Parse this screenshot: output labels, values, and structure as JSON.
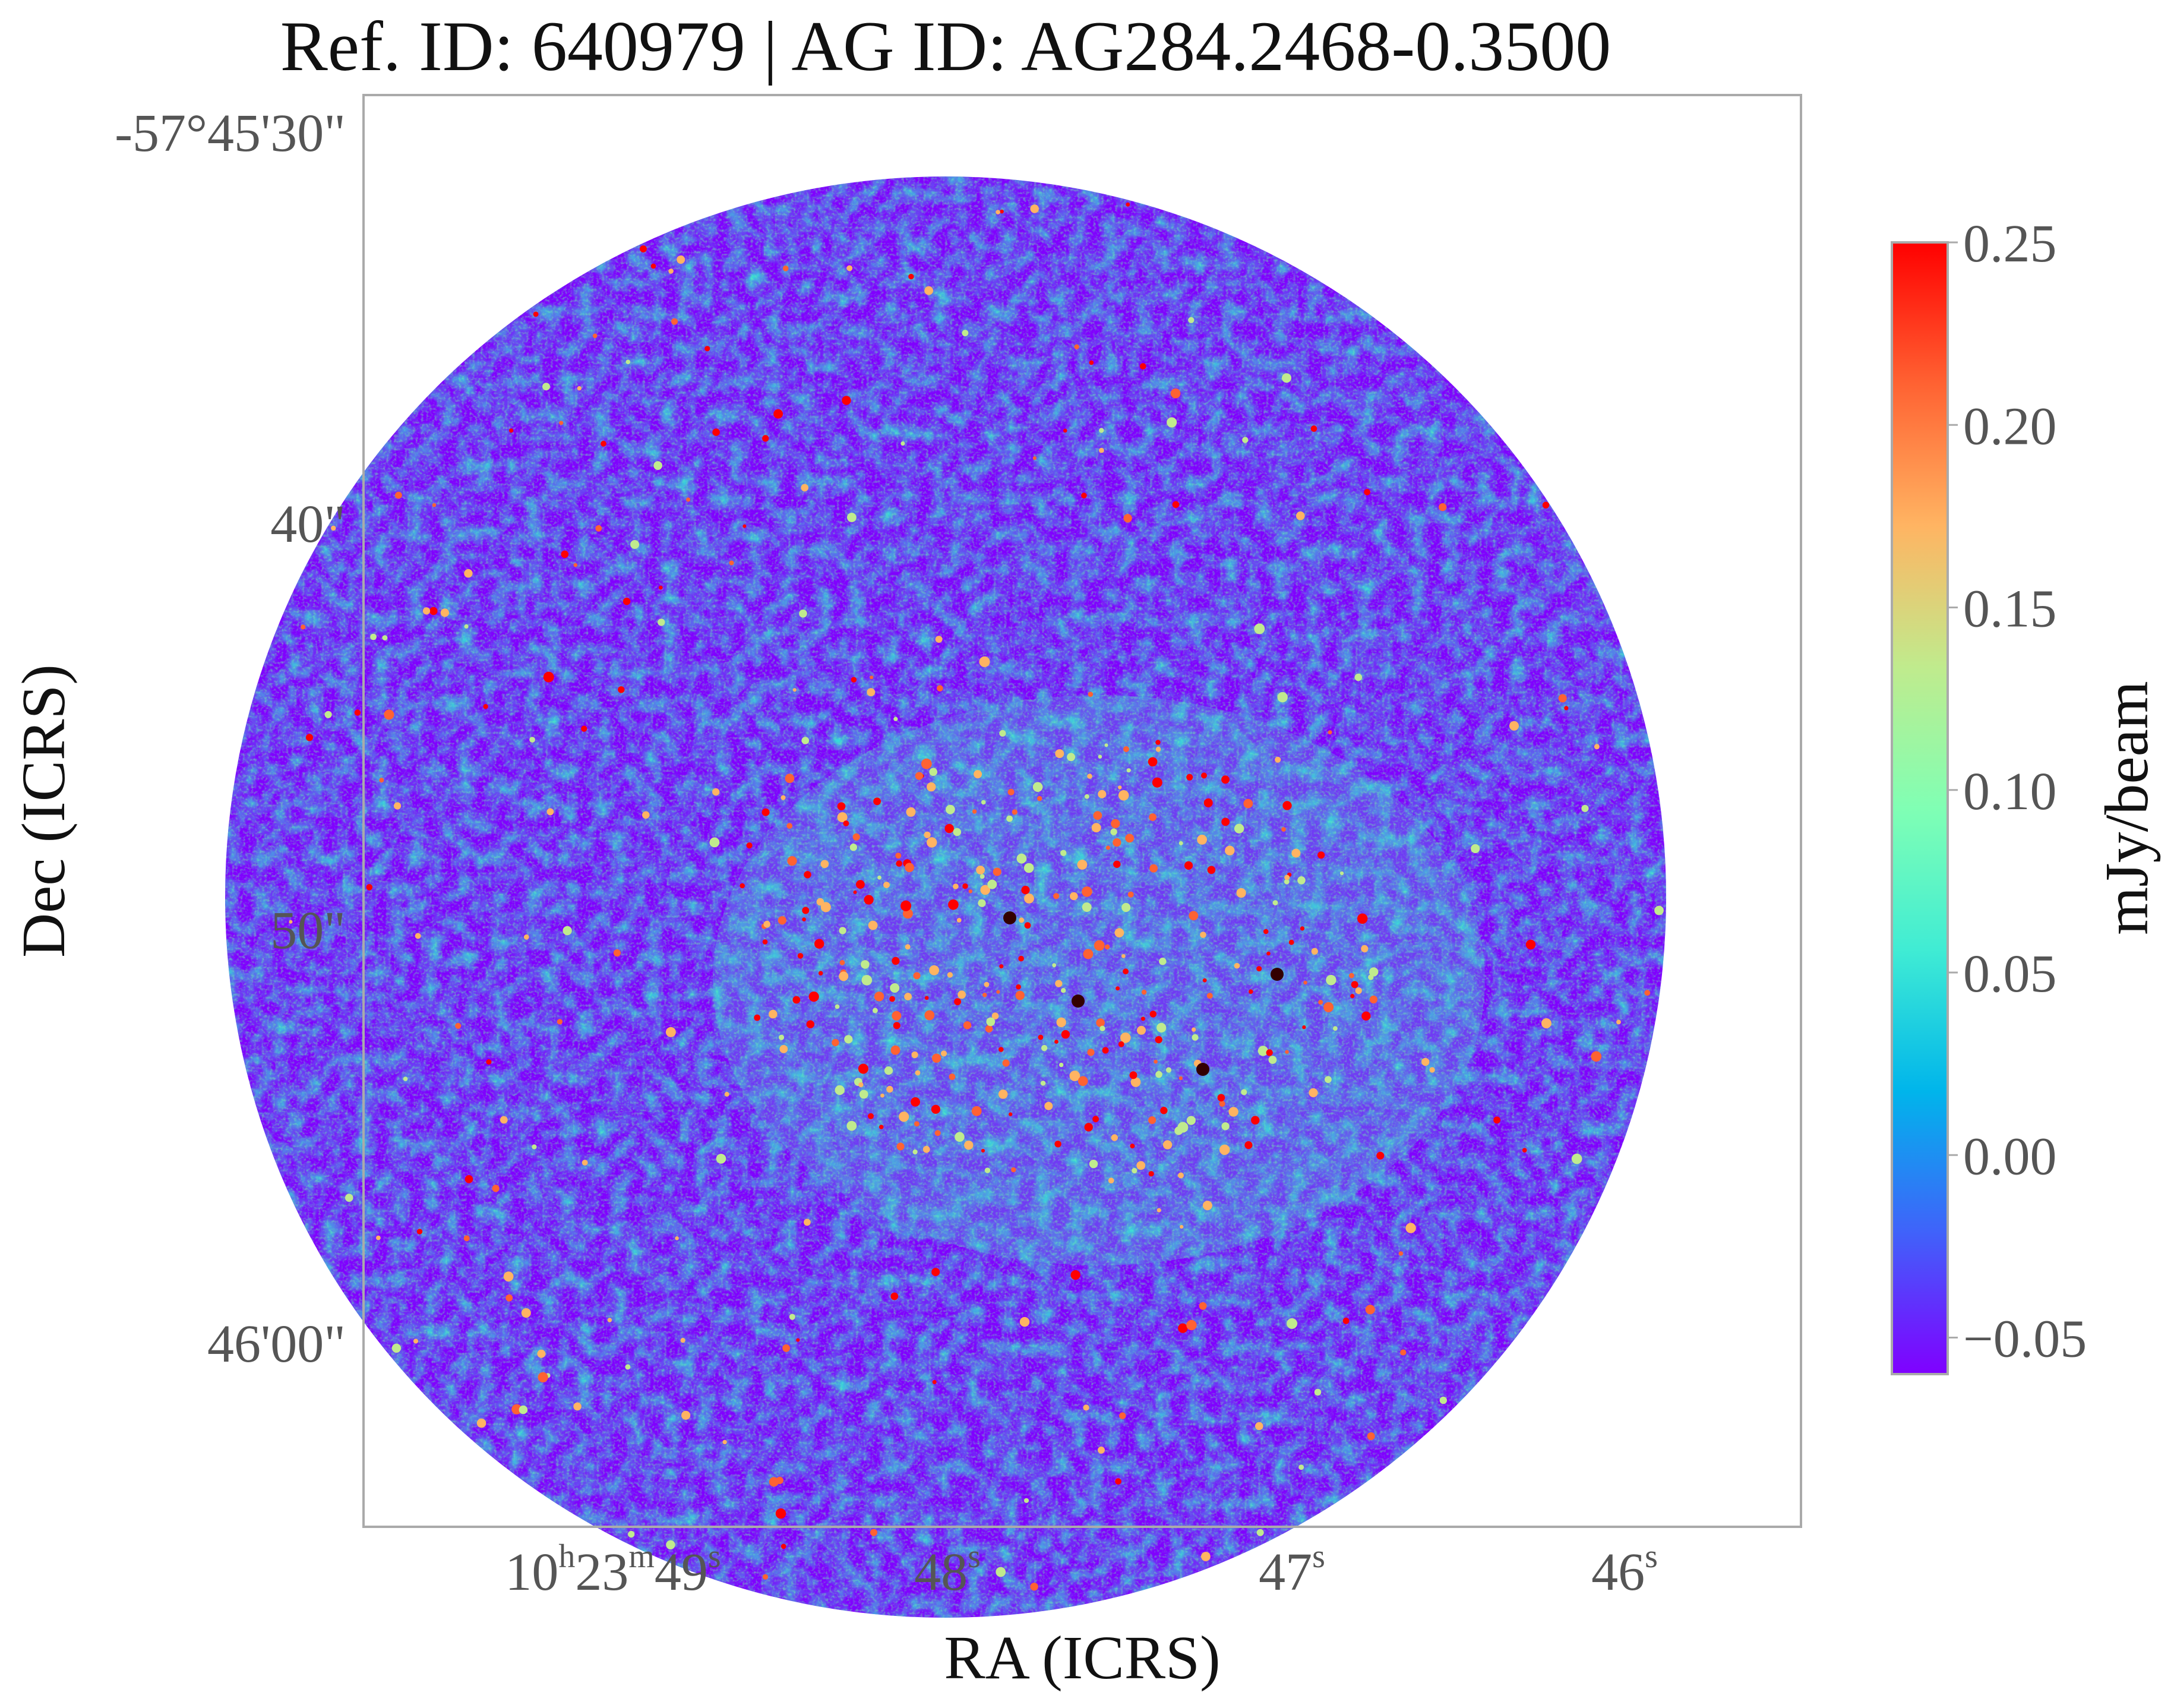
{
  "chart_data": {
    "type": "heatmap",
    "title": "Ref. ID: 640979 | AG ID: AG284.2468-0.3500",
    "xlabel": "RA (ICRS)",
    "ylabel": "Dec (ICRS)",
    "x_ticks": [
      {
        "value": "10h23m49s",
        "parts": [
          [
            "10",
            ""
          ],
          [
            "h",
            "sup"
          ],
          [
            "23",
            ""
          ],
          [
            "m",
            "sup"
          ],
          [
            "49",
            ""
          ],
          [
            "s",
            "sup"
          ]
        ]
      },
      {
        "value": "48s",
        "parts": [
          [
            "48",
            ""
          ],
          [
            "s",
            "sup"
          ]
        ]
      },
      {
        "value": "47s",
        "parts": [
          [
            "47",
            ""
          ],
          [
            "s",
            "sup"
          ]
        ]
      },
      {
        "value": "46s",
        "parts": [
          [
            "46",
            ""
          ],
          [
            "s",
            "sup"
          ]
        ]
      }
    ],
    "y_ticks": [
      "-57°45'30\"",
      "40\"",
      "50\"",
      "46'00\""
    ],
    "colorbar": {
      "label": "mJy/beam",
      "ticks": [
        "0.25",
        "0.20",
        "0.15",
        "0.10",
        "0.05",
        "0.00",
        "−0.05"
      ],
      "range": [
        -0.06,
        0.25
      ],
      "colormap": "rainbow",
      "colormap_colors": [
        "#8000ff",
        "#4062fa",
        "#00b5eb",
        "#40ecd4",
        "#80ffb4",
        "#c0eb8d",
        "#ffb462",
        "#ff6232",
        "#ff0000"
      ]
    },
    "image": {
      "shape": "circular field of view",
      "background_value": -0.05,
      "noise_level": 0.05,
      "description_of_emission": "extended faint emission across the center with bright compact spots near the middle"
    },
    "grid": false
  },
  "colors": {
    "frame": "#aaaaaa",
    "text": "#111111",
    "tick_text": "#555555"
  }
}
